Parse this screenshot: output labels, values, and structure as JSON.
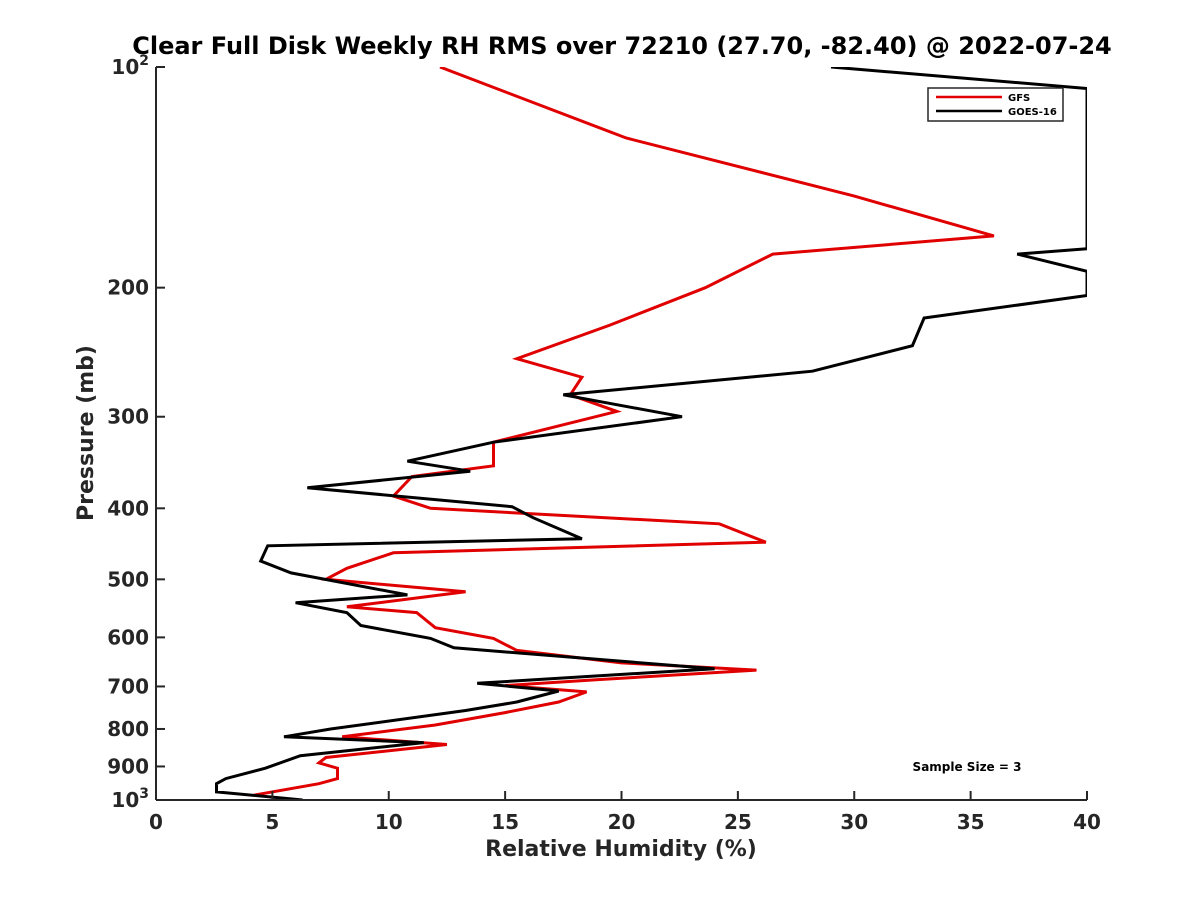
{
  "chart_data": {
    "type": "line",
    "title": "Clear Full Disk Weekly RH RMS over 72210 (27.70, -82.40) @ 2022-07-24",
    "xlabel": "Relative Humidity (%)",
    "ylabel": "Pressure (mb)",
    "xlim": [
      0,
      40
    ],
    "ylim": [
      100,
      1000
    ],
    "y_scale": "log",
    "y_reversed": true,
    "grid": false,
    "legend_position": "top-right",
    "x_ticks": [
      "0",
      "5",
      "10",
      "15",
      "20",
      "25",
      "30",
      "35",
      "40"
    ],
    "y_ticks": [
      {
        "value": 100,
        "base": "10",
        "exp": "2"
      },
      {
        "value": 200,
        "label": "200"
      },
      {
        "value": 300,
        "label": "300"
      },
      {
        "value": 400,
        "label": "400"
      },
      {
        "value": 500,
        "label": "500"
      },
      {
        "value": 600,
        "label": "600"
      },
      {
        "value": 700,
        "label": "700"
      },
      {
        "value": 800,
        "label": "800"
      },
      {
        "value": 900,
        "label": "900"
      },
      {
        "value": 1000,
        "base": "10",
        "exp": "3"
      }
    ],
    "annotation": "Sample Size = 3",
    "series": [
      {
        "name": "GFS",
        "color": "#e00000",
        "points": [
          [
            12.2,
            100
          ],
          [
            20.2,
            125
          ],
          [
            30.0,
            150
          ],
          [
            36.0,
            170
          ],
          [
            26.5,
            180
          ],
          [
            23.6,
            200
          ],
          [
            19.5,
            225
          ],
          [
            15.5,
            250
          ],
          [
            18.3,
            265
          ],
          [
            17.8,
            280
          ],
          [
            19.8,
            295
          ],
          [
            14.5,
            325
          ],
          [
            14.5,
            350
          ],
          [
            11.0,
            362
          ],
          [
            10.2,
            385
          ],
          [
            11.8,
            400
          ],
          [
            24.2,
            420
          ],
          [
            26.2,
            445
          ],
          [
            10.2,
            460
          ],
          [
            8.2,
            483
          ],
          [
            7.3,
            500
          ],
          [
            13.3,
            520
          ],
          [
            8.2,
            545
          ],
          [
            11.2,
            555
          ],
          [
            12.0,
            582
          ],
          [
            14.5,
            602
          ],
          [
            15.5,
            625
          ],
          [
            20.0,
            650
          ],
          [
            25.8,
            665
          ],
          [
            19.0,
            685
          ],
          [
            15.0,
            698
          ],
          [
            18.5,
            712
          ],
          [
            17.3,
            735
          ],
          [
            15.0,
            760
          ],
          [
            12.0,
            790
          ],
          [
            8.0,
            820
          ],
          [
            12.5,
            840
          ],
          [
            7.3,
            875
          ],
          [
            7.0,
            890
          ],
          [
            7.8,
            905
          ],
          [
            7.8,
            935
          ],
          [
            7.0,
            950
          ],
          [
            4.2,
            985
          ]
        ]
      },
      {
        "name": "GOES-16",
        "color": "#000000",
        "points": [
          [
            29.0,
            100
          ],
          [
            40,
            107
          ],
          [
            40,
            177
          ],
          [
            37.0,
            180
          ],
          [
            40,
            190
          ],
          [
            40,
            205
          ],
          [
            33.0,
            220
          ],
          [
            32.5,
            240
          ],
          [
            28.2,
            260
          ],
          [
            17.5,
            280
          ],
          [
            22.6,
            300
          ],
          [
            14.5,
            325
          ],
          [
            10.8,
            345
          ],
          [
            13.5,
            356
          ],
          [
            6.5,
            375
          ],
          [
            15.3,
            398
          ],
          [
            16.2,
            412
          ],
          [
            18.3,
            440
          ],
          [
            4.8,
            450
          ],
          [
            4.5,
            472
          ],
          [
            5.8,
            490
          ],
          [
            10.8,
            525
          ],
          [
            6.0,
            538
          ],
          [
            8.2,
            555
          ],
          [
            8.8,
            578
          ],
          [
            11.8,
            602
          ],
          [
            12.8,
            620
          ],
          [
            24.0,
            662
          ],
          [
            13.8,
            693
          ],
          [
            17.3,
            710
          ],
          [
            15.5,
            735
          ],
          [
            13.3,
            755
          ],
          [
            7.5,
            800
          ],
          [
            5.5,
            820
          ],
          [
            11.5,
            835
          ],
          [
            6.2,
            870
          ],
          [
            4.7,
            905
          ],
          [
            3.0,
            935
          ],
          [
            2.6,
            950
          ],
          [
            2.6,
            975
          ],
          [
            6.3,
            1000
          ]
        ]
      }
    ]
  }
}
